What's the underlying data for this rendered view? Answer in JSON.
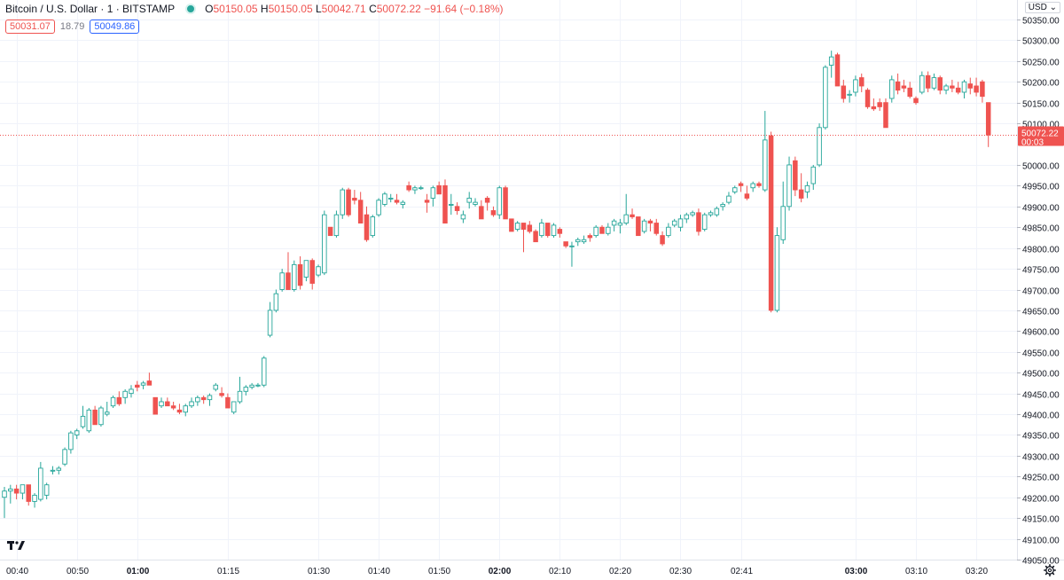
{
  "legend": {
    "symbol": "Bitcoin / U.S. Dollar · 1 · BITSTAMP",
    "open_label": "O",
    "open": "50150.05",
    "high_label": "H",
    "high": "50150.05",
    "low_label": "L",
    "low": "50042.71",
    "close_label": "C",
    "close": "50072.22",
    "change": "−91.64 (−0.18%)",
    "bid": "50031.07",
    "spread": "18.79",
    "ask": "50049.86"
  },
  "currency": "USD",
  "colors": {
    "up": "#26a69a",
    "down": "#ef5350",
    "grid": "#f0f3fa",
    "axis": "#e0e3eb"
  },
  "icons": {
    "logo": "tradingview-logo-icon",
    "settings": "gear-icon"
  },
  "chart_data": {
    "type": "candlestick",
    "ylim": [
      49050,
      50350
    ],
    "y_ticks": [
      "50350.00",
      "50300.00",
      "50250.00",
      "50200.00",
      "50150.00",
      "50100.00",
      "50000.00",
      "49950.00",
      "49900.00",
      "49850.00",
      "49800.00",
      "49750.00",
      "49700.00",
      "49650.00",
      "49600.00",
      "49550.00",
      "49500.00",
      "49450.00",
      "49400.00",
      "49350.00",
      "49300.00",
      "49250.00",
      "49200.00",
      "49150.00",
      "49100.00",
      "49050.00"
    ],
    "x_ticks": [
      {
        "label": "00:40",
        "bar": 2,
        "bold": false
      },
      {
        "label": "00:50",
        "bar": 12,
        "bold": false
      },
      {
        "label": "01:00",
        "bar": 22,
        "bold": true
      },
      {
        "label": "01:15",
        "bar": 37,
        "bold": false
      },
      {
        "label": "01:30",
        "bar": 52,
        "bold": false
      },
      {
        "label": "01:40",
        "bar": 62,
        "bold": false
      },
      {
        "label": "01:50",
        "bar": 72,
        "bold": false
      },
      {
        "label": "02:00",
        "bar": 82,
        "bold": true
      },
      {
        "label": "02:10",
        "bar": 92,
        "bold": false
      },
      {
        "label": "02:20",
        "bar": 102,
        "bold": false
      },
      {
        "label": "02:30",
        "bar": 112,
        "bold": false
      },
      {
        "label": "02:41",
        "bar": 122,
        "bold": false
      },
      {
        "label": "03:00",
        "bar": 141,
        "bold": true
      },
      {
        "label": "03:10",
        "bar": 151,
        "bold": false
      },
      {
        "label": "03:20",
        "bar": 161,
        "bold": false
      }
    ],
    "last_price": "50072.22",
    "last_countdown": "00:03",
    "candles": [
      [
        49200,
        49225,
        49150,
        49215
      ],
      [
        49215,
        49230,
        49185,
        49220
      ],
      [
        49220,
        49230,
        49195,
        49210
      ],
      [
        49210,
        49230,
        49195,
        49230
      ],
      [
        49230,
        49230,
        49180,
        49190
      ],
      [
        49190,
        49210,
        49175,
        49205
      ],
      [
        49195,
        49285,
        49190,
        49270
      ],
      [
        49205,
        49235,
        49195,
        49230
      ],
      [
        49265,
        49275,
        49255,
        49265
      ],
      [
        49265,
        49275,
        49255,
        49270
      ],
      [
        49280,
        49320,
        49275,
        49315
      ],
      [
        49315,
        49360,
        49305,
        49355
      ],
      [
        49350,
        49365,
        49340,
        49360
      ],
      [
        49370,
        49420,
        49365,
        49395
      ],
      [
        49360,
        49415,
        49355,
        49410
      ],
      [
        49410,
        49420,
        49375,
        49375
      ],
      [
        49375,
        49420,
        49370,
        49415
      ],
      [
        49400,
        49430,
        49395,
        49405
      ],
      [
        49420,
        49445,
        49415,
        49440
      ],
      [
        49440,
        49455,
        49420,
        49425
      ],
      [
        49440,
        49460,
        49425,
        49455
      ],
      [
        49450,
        49470,
        49440,
        49460
      ],
      [
        49470,
        49480,
        49455,
        49465
      ],
      [
        49470,
        49480,
        49460,
        49475
      ],
      [
        49480,
        49500,
        49470,
        49470
      ],
      [
        49440,
        49440,
        49400,
        49400
      ],
      [
        49420,
        49440,
        49415,
        49430
      ],
      [
        49430,
        49440,
        49420,
        49420
      ],
      [
        49420,
        49430,
        49410,
        49415
      ],
      [
        49410,
        49425,
        49400,
        49405
      ],
      [
        49405,
        49425,
        49395,
        49420
      ],
      [
        49420,
        49440,
        49415,
        49430
      ],
      [
        49430,
        49445,
        49420,
        49440
      ],
      [
        49440,
        49445,
        49425,
        49435
      ],
      [
        49435,
        49450,
        49420,
        49445
      ],
      [
        49460,
        49475,
        49455,
        49470
      ],
      [
        49450,
        49465,
        49440,
        49445
      ],
      [
        49440,
        49450,
        49415,
        49415
      ],
      [
        49405,
        49430,
        49400,
        49430
      ],
      [
        49430,
        49490,
        49425,
        49455
      ],
      [
        49455,
        49470,
        49445,
        49465
      ],
      [
        49465,
        49475,
        49460,
        49470
      ],
      [
        49470,
        49475,
        49465,
        49470
      ],
      [
        49470,
        49540,
        49465,
        49535
      ],
      [
        49590,
        49670,
        49585,
        49650
      ],
      [
        49650,
        49700,
        49645,
        49690
      ],
      [
        49700,
        49750,
        49695,
        49740
      ],
      [
        49740,
        49790,
        49700,
        49700
      ],
      [
        49700,
        49770,
        49695,
        49760
      ],
      [
        49760,
        49780,
        49700,
        49710
      ],
      [
        49730,
        49770,
        49720,
        49770
      ],
      [
        49770,
        49775,
        49700,
        49715
      ],
      [
        49735,
        49760,
        49730,
        49755
      ],
      [
        49740,
        49890,
        49735,
        49880
      ],
      [
        49850,
        49850,
        49830,
        49830
      ],
      [
        49830,
        49890,
        49825,
        49880
      ],
      [
        49880,
        49945,
        49870,
        49940
      ],
      [
        49940,
        49945,
        49875,
        49880
      ],
      [
        49920,
        49940,
        49905,
        49915
      ],
      [
        49915,
        49935,
        49860,
        49860
      ],
      [
        49880,
        49900,
        49815,
        49820
      ],
      [
        49830,
        49880,
        49825,
        49875
      ],
      [
        49880,
        49920,
        49875,
        49915
      ],
      [
        49905,
        49935,
        49900,
        49930
      ],
      [
        49920,
        49930,
        49910,
        49920
      ],
      [
        49915,
        49930,
        49905,
        49910
      ],
      [
        49905,
        49915,
        49895,
        49910
      ],
      [
        49950,
        49960,
        49935,
        49940
      ],
      [
        49940,
        49950,
        49930,
        49945
      ],
      [
        49945,
        49950,
        49940,
        49945
      ],
      [
        49915,
        49930,
        49885,
        49910
      ],
      [
        49920,
        49950,
        49900,
        49945
      ],
      [
        49950,
        49960,
        49930,
        49930
      ],
      [
        49950,
        49965,
        49860,
        49860
      ],
      [
        49905,
        49930,
        49880,
        49905
      ],
      [
        49900,
        49910,
        49880,
        49890
      ],
      [
        49870,
        49890,
        49860,
        49880
      ],
      [
        49910,
        49935,
        49895,
        49920
      ],
      [
        49905,
        49920,
        49900,
        49910
      ],
      [
        49900,
        49915,
        49870,
        49870
      ],
      [
        49920,
        49925,
        49890,
        49910
      ],
      [
        49890,
        49900,
        49875,
        49880
      ],
      [
        49880,
        49950,
        49870,
        49945
      ],
      [
        49945,
        49950,
        49870,
        49870
      ],
      [
        49870,
        49870,
        49840,
        49840
      ],
      [
        49845,
        49865,
        49840,
        49860
      ],
      [
        49860,
        49860,
        49790,
        49845
      ],
      [
        49855,
        49865,
        49835,
        49840
      ],
      [
        49840,
        49845,
        49815,
        49815
      ],
      [
        49830,
        49870,
        49825,
        49860
      ],
      [
        49860,
        49860,
        49825,
        49830
      ],
      [
        49830,
        49860,
        49825,
        49855
      ],
      [
        49845,
        49850,
        49825,
        49835
      ],
      [
        49815,
        49815,
        49800,
        49805
      ],
      [
        49805,
        49815,
        49755,
        49805
      ],
      [
        49815,
        49825,
        49805,
        49820
      ],
      [
        49815,
        49830,
        49810,
        49820
      ],
      [
        49830,
        49835,
        49815,
        49825
      ],
      [
        49830,
        49855,
        49825,
        49850
      ],
      [
        49850,
        49855,
        49835,
        49835
      ],
      [
        49835,
        49860,
        49830,
        49850
      ],
      [
        49855,
        49870,
        49840,
        49865
      ],
      [
        49855,
        49870,
        49835,
        49860
      ],
      [
        49860,
        49930,
        49855,
        49880
      ],
      [
        49880,
        49895,
        49870,
        49875
      ],
      [
        49875,
        49875,
        49830,
        49830
      ],
      [
        49840,
        49870,
        49835,
        49865
      ],
      [
        49865,
        49870,
        49840,
        49860
      ],
      [
        49860,
        49870,
        49830,
        49835
      ],
      [
        49830,
        49840,
        49805,
        49810
      ],
      [
        49830,
        49860,
        49825,
        49850
      ],
      [
        49855,
        49870,
        49850,
        49865
      ],
      [
        49850,
        49880,
        49840,
        49870
      ],
      [
        49870,
        49885,
        49860,
        49880
      ],
      [
        49880,
        49890,
        49875,
        49885
      ],
      [
        49885,
        49895,
        49830,
        49840
      ],
      [
        49845,
        49885,
        49840,
        49880
      ],
      [
        49880,
        49890,
        49875,
        49885
      ],
      [
        49880,
        49900,
        49875,
        49895
      ],
      [
        49900,
        49910,
        49890,
        49905
      ],
      [
        49910,
        49935,
        49905,
        49925
      ],
      [
        49935,
        49950,
        49930,
        49945
      ],
      [
        49955,
        49960,
        49935,
        49950
      ],
      [
        49930,
        49950,
        49915,
        49920
      ],
      [
        49945,
        49960,
        49935,
        49955
      ],
      [
        49955,
        49960,
        49945,
        49950
      ],
      [
        49940,
        50130,
        49935,
        50060
      ],
      [
        50070,
        50080,
        49645,
        49650
      ],
      [
        49650,
        49850,
        49645,
        49830
      ],
      [
        49820,
        49960,
        49810,
        49900
      ],
      [
        49900,
        50020,
        49890,
        50000
      ],
      [
        50010,
        50020,
        49925,
        49940
      ],
      [
        49940,
        49980,
        49910,
        49920
      ],
      [
        49935,
        49960,
        49920,
        49950
      ],
      [
        49955,
        50000,
        49940,
        49995
      ],
      [
        50000,
        50100,
        49995,
        50090
      ],
      [
        50090,
        50240,
        50085,
        50235
      ],
      [
        50240,
        50275,
        50210,
        50260
      ],
      [
        50265,
        50270,
        50190,
        50190
      ],
      [
        50190,
        50205,
        50150,
        50160
      ],
      [
        50170,
        50180,
        50150,
        50170
      ],
      [
        50175,
        50215,
        50165,
        50205
      ],
      [
        50210,
        50220,
        50175,
        50190
      ],
      [
        50180,
        50185,
        50135,
        50140
      ],
      [
        50140,
        50160,
        50130,
        50135
      ],
      [
        50150,
        50160,
        50130,
        50140
      ],
      [
        50150,
        50160,
        50090,
        50090
      ],
      [
        50160,
        50215,
        50150,
        50205
      ],
      [
        50200,
        50220,
        50170,
        50180
      ],
      [
        50190,
        50205,
        50175,
        50185
      ],
      [
        50185,
        50200,
        50160,
        50165
      ],
      [
        50160,
        50165,
        50145,
        50150
      ],
      [
        50175,
        50225,
        50170,
        50215
      ],
      [
        50215,
        50225,
        50175,
        50185
      ],
      [
        50185,
        50220,
        50180,
        50210
      ],
      [
        50210,
        50215,
        50170,
        50180
      ],
      [
        50180,
        50195,
        50170,
        50190
      ],
      [
        50190,
        50205,
        50175,
        50185
      ],
      [
        50185,
        50200,
        50170,
        50175
      ],
      [
        50175,
        50205,
        50160,
        50200
      ],
      [
        50195,
        50210,
        50170,
        50185
      ],
      [
        50190,
        50210,
        50165,
        50175
      ],
      [
        50200,
        50205,
        50150,
        50165
      ],
      [
        50150,
        50150,
        50043,
        50072
      ]
    ]
  }
}
